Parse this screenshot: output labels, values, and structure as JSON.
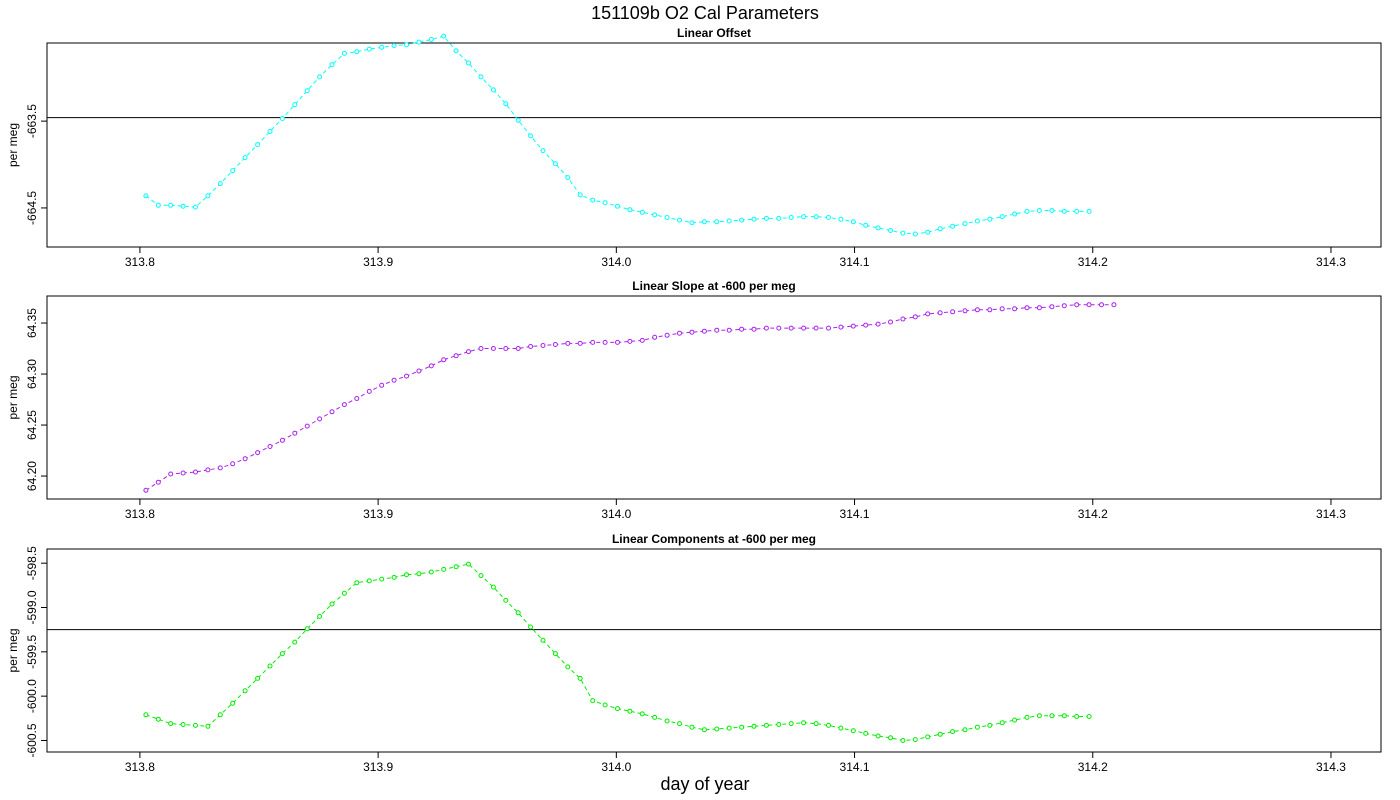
{
  "title": "151109b   O2 Cal Parameters",
  "xlabel": "day of year",
  "chart_data": [
    {
      "type": "line",
      "title": "Linear Offset",
      "ylabel": "per meg",
      "color": "#00ffff",
      "xlim": [
        313.761,
        314.321
      ],
      "ylim": [
        -664.95,
        -662.6
      ],
      "xticks": [
        313.8,
        313.9,
        314.0,
        314.1,
        314.2,
        314.3
      ],
      "xtick_labels": [
        "313.8",
        "313.9",
        "314.0",
        "314.1",
        "314.2",
        "314.3"
      ],
      "yticks": [
        -663.5,
        -664.5
      ],
      "ytick_labels": [
        "-663.5",
        "-664.5"
      ],
      "hline": -663.46,
      "x_start": 313.8025,
      "x_step": 0.00521,
      "values": [
        -664.36,
        -664.47,
        -664.47,
        -664.48,
        -664.49,
        -664.36,
        -664.22,
        -664.07,
        -663.92,
        -663.77,
        -663.62,
        -663.47,
        -663.31,
        -663.15,
        -662.99,
        -662.85,
        -662.72,
        -662.7,
        -662.67,
        -662.65,
        -662.63,
        -662.62,
        -662.59,
        -662.56,
        -662.52,
        -662.69,
        -662.83,
        -662.99,
        -663.14,
        -663.3,
        -663.49,
        -663.67,
        -663.84,
        -663.99,
        -664.15,
        -664.35,
        -664.41,
        -664.44,
        -664.48,
        -664.52,
        -664.55,
        -664.58,
        -664.61,
        -664.64,
        -664.67,
        -664.66,
        -664.66,
        -664.65,
        -664.64,
        -664.63,
        -664.62,
        -664.62,
        -664.61,
        -664.6,
        -664.6,
        -664.61,
        -664.63,
        -664.66,
        -664.7,
        -664.73,
        -664.76,
        -664.79,
        -664.8,
        -664.78,
        -664.74,
        -664.71,
        -664.68,
        -664.65,
        -664.63,
        -664.6,
        -664.57,
        -664.54,
        -664.53,
        -664.53,
        -664.54,
        -664.54,
        -664.54
      ],
      "marker": "open-circle",
      "line_style": "dashed"
    },
    {
      "type": "line",
      "title": "Linear Slope at -600 per meg",
      "ylabel": "per meg",
      "color": "#aa22ee",
      "xlim": [
        313.761,
        314.321
      ],
      "ylim": [
        64.1775,
        64.3765
      ],
      "xticks": [
        313.8,
        313.9,
        314.0,
        314.1,
        314.2,
        314.3
      ],
      "xtick_labels": [
        "313.8",
        "313.9",
        "314.0",
        "314.1",
        "314.2",
        "314.3"
      ],
      "yticks": [
        64.2,
        64.25,
        64.3,
        64.35
      ],
      "ytick_labels": [
        "64.20",
        "64.25",
        "64.30",
        "64.35"
      ],
      "hline": null,
      "x_start": 313.8025,
      "x_step": 0.00521,
      "values": [
        64.186,
        64.194,
        64.202,
        64.203,
        64.204,
        64.206,
        64.208,
        64.212,
        64.217,
        64.223,
        64.229,
        64.235,
        64.242,
        64.249,
        64.256,
        64.263,
        64.27,
        64.276,
        64.283,
        64.289,
        64.294,
        64.298,
        64.303,
        64.308,
        64.314,
        64.318,
        64.322,
        64.325,
        64.325,
        64.325,
        64.325,
        64.327,
        64.328,
        64.329,
        64.33,
        64.33,
        64.331,
        64.331,
        64.331,
        64.332,
        64.333,
        64.336,
        64.338,
        64.34,
        64.341,
        64.342,
        64.343,
        64.343,
        64.344,
        64.344,
        64.345,
        64.345,
        64.345,
        64.345,
        64.345,
        64.345,
        64.346,
        64.347,
        64.348,
        64.349,
        64.351,
        64.354,
        64.356,
        64.359,
        64.36,
        64.361,
        64.362,
        64.363,
        64.363,
        64.364,
        64.364,
        64.365,
        64.365,
        64.366,
        64.367,
        64.368,
        64.368,
        64.368,
        64.368
      ],
      "marker": "open-circle",
      "line_style": "dashed"
    },
    {
      "type": "line",
      "title": "Linear Components at -600 per meg",
      "ylabel": "per meg",
      "color": "#00ee00",
      "xlim": [
        313.761,
        314.321
      ],
      "ylim": [
        -600.63,
        -598.34
      ],
      "xticks": [
        313.8,
        313.9,
        314.0,
        314.1,
        314.2,
        314.3
      ],
      "xtick_labels": [
        "313.8",
        "313.9",
        "314.0",
        "314.1",
        "314.2",
        "314.3"
      ],
      "yticks": [
        -598.5,
        -599.0,
        -599.5,
        -600.0,
        -600.5
      ],
      "ytick_labels": [
        "-598.5",
        "-599.0",
        "-599.5",
        "-600.0",
        "-600.5"
      ],
      "hline": -599.25,
      "x_start": 313.8025,
      "x_step": 0.00521,
      "values": [
        -600.21,
        -600.26,
        -600.31,
        -600.32,
        -600.33,
        -600.34,
        -600.21,
        -600.08,
        -599.94,
        -599.8,
        -599.66,
        -599.52,
        -599.39,
        -599.24,
        -599.1,
        -598.96,
        -598.84,
        -598.72,
        -598.7,
        -598.68,
        -598.66,
        -598.63,
        -598.62,
        -598.6,
        -598.57,
        -598.54,
        -598.51,
        -598.64,
        -598.77,
        -598.92,
        -599.06,
        -599.22,
        -599.37,
        -599.52,
        -599.67,
        -599.8,
        -600.05,
        -600.1,
        -600.14,
        -600.17,
        -600.2,
        -600.24,
        -600.28,
        -600.31,
        -600.35,
        -600.38,
        -600.37,
        -600.36,
        -600.35,
        -600.34,
        -600.33,
        -600.32,
        -600.31,
        -600.3,
        -600.31,
        -600.33,
        -600.36,
        -600.39,
        -600.42,
        -600.45,
        -600.47,
        -600.5,
        -600.49,
        -600.46,
        -600.43,
        -600.4,
        -600.38,
        -600.35,
        -600.33,
        -600.3,
        -600.27,
        -600.24,
        -600.22,
        -600.22,
        -600.22,
        -600.23,
        -600.23
      ]
    }
  ]
}
